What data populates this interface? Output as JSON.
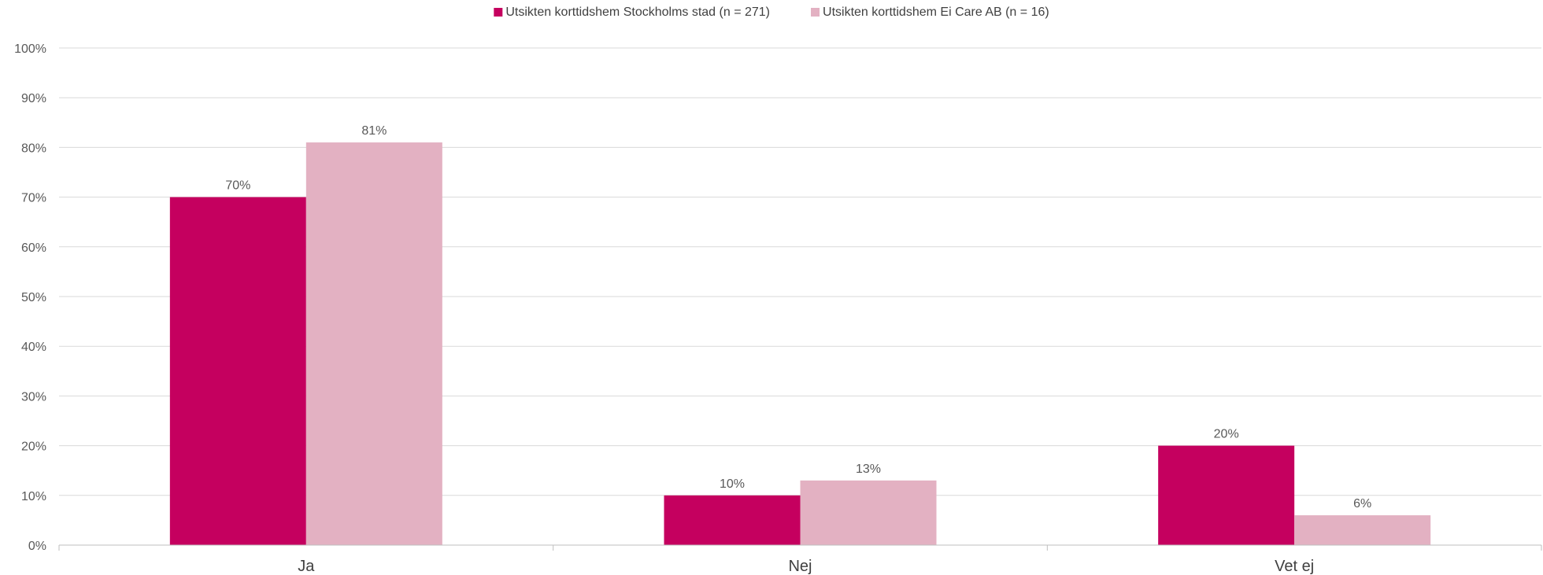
{
  "chart_data": {
    "type": "bar",
    "title": "",
    "xlabel": "",
    "ylabel": "",
    "categories": [
      "Ja",
      "Nej",
      "Vet ej"
    ],
    "series": [
      {
        "name": "Utsikten korttidshem Stockholms stad (n = 271)",
        "color": "#c5005f",
        "values": [
          70,
          10,
          20
        ],
        "labels": [
          "70%",
          "10%",
          "20%"
        ]
      },
      {
        "name": "Utsikten korttidshem Ei Care AB (n = 16)",
        "color": "#e3b1c2",
        "values": [
          81,
          13,
          6
        ],
        "labels": [
          "81%",
          "13%",
          "6%"
        ]
      }
    ],
    "ylim": [
      0,
      100
    ],
    "yticks": [
      0,
      10,
      20,
      30,
      40,
      50,
      60,
      70,
      80,
      90,
      100
    ],
    "ytick_labels": [
      "0%",
      "10%",
      "20%",
      "30%",
      "40%",
      "50%",
      "60%",
      "70%",
      "80%",
      "90%",
      "100%"
    ],
    "grid": true,
    "legend_position": "top-center"
  }
}
